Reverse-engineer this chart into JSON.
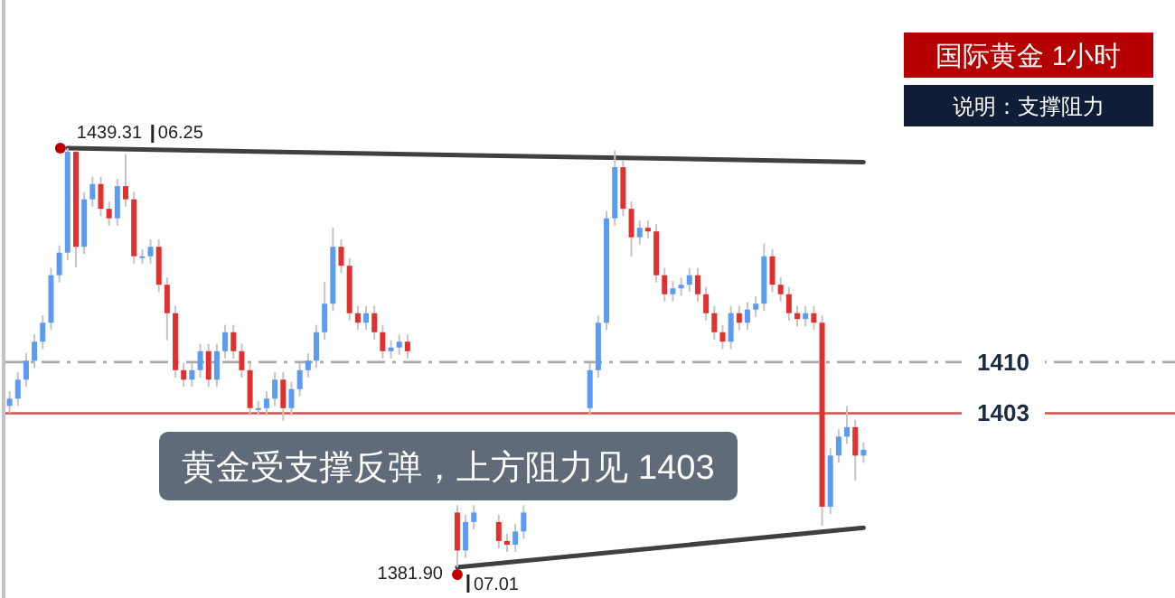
{
  "chart_data": {
    "type": "candlestick",
    "title": "国际黄金 1小时",
    "subtitle": "说明：支撑阻力",
    "categories": [
      null,
      null,
      null,
      null,
      null,
      null,
      null,
      null,
      null,
      null,
      null,
      null,
      null,
      null,
      null,
      null,
      null,
      null,
      null,
      null,
      null,
      null,
      null,
      null,
      null,
      null,
      null,
      null,
      null,
      null,
      null,
      null,
      null,
      null,
      null,
      null,
      null,
      null,
      null,
      null,
      null,
      null,
      null,
      null,
      null,
      null,
      null,
      null,
      null,
      null,
      null,
      null,
      null,
      null,
      null,
      null,
      null,
      null,
      null,
      null,
      null,
      null,
      null,
      null,
      null,
      null,
      null,
      null,
      null,
      null,
      null,
      null,
      null,
      null,
      null,
      null,
      null,
      null,
      null,
      null,
      null,
      null,
      null,
      null,
      null,
      null,
      null,
      null,
      null,
      null,
      null,
      null,
      null,
      null,
      null,
      null,
      null,
      null,
      null,
      null,
      null,
      null,
      null,
      null
    ],
    "ohlc": [
      [
        1404.0,
        1406.0,
        1403.0,
        1405.0
      ],
      [
        1405.0,
        1408.6,
        1404.0,
        1407.6
      ],
      [
        1407.6,
        1411.2,
        1406.6,
        1410.2
      ],
      [
        1410.2,
        1413.8,
        1409.2,
        1412.8
      ],
      [
        1412.8,
        1416.4,
        1411.8,
        1415.4
      ],
      [
        1415.4,
        1422.9,
        1414.4,
        1421.9
      ],
      [
        1421.9,
        1426.0,
        1420.9,
        1425.0
      ],
      [
        1425.0,
        1439.31,
        1424.0,
        1438.8
      ],
      [
        1438.8,
        1439.0,
        1423.0,
        1425.8
      ],
      [
        1425.8,
        1433.3,
        1424.8,
        1432.3
      ],
      [
        1432.3,
        1435.4,
        1431.3,
        1434.4
      ],
      [
        1434.4,
        1435.4,
        1430.0,
        1431.0
      ],
      [
        1431.0,
        1432.0,
        1428.7,
        1429.7
      ],
      [
        1429.7,
        1435.1,
        1428.7,
        1434.1
      ],
      [
        1434.1,
        1438.5,
        1431.3,
        1432.3
      ],
      [
        1432.3,
        1433.3,
        1423.5,
        1424.5
      ],
      [
        1424.5,
        1425.5,
        1423.5,
        1424.5
      ],
      [
        1424.5,
        1426.8,
        1423.5,
        1425.8
      ],
      [
        1425.8,
        1426.8,
        1419.6,
        1420.6
      ],
      [
        1420.6,
        1421.6,
        1413.0,
        1416.7
      ],
      [
        1416.7,
        1417.7,
        1407.9,
        1408.9
      ],
      [
        1408.9,
        1409.9,
        1406.6,
        1407.6
      ],
      [
        1407.6,
        1409.9,
        1406.6,
        1408.9
      ],
      [
        1408.9,
        1412.5,
        1407.9,
        1411.5
      ],
      [
        1411.5,
        1412.5,
        1406.6,
        1407.6
      ],
      [
        1407.6,
        1412.5,
        1406.6,
        1411.5
      ],
      [
        1411.5,
        1415.1,
        1410.5,
        1414.1
      ],
      [
        1414.1,
        1415.1,
        1410.5,
        1411.5
      ],
      [
        1411.5,
        1412.5,
        1407.9,
        1408.9
      ],
      [
        1408.9,
        1409.9,
        1402.7,
        1403.7
      ],
      [
        1403.7,
        1404.7,
        1402.7,
        1403.7
      ],
      [
        1403.7,
        1406.0,
        1402.7,
        1405.0
      ],
      [
        1405.0,
        1408.6,
        1404.0,
        1407.6
      ],
      [
        1407.6,
        1408.6,
        1402.0,
        1403.7
      ],
      [
        1403.7,
        1407.3,
        1402.7,
        1406.3
      ],
      [
        1406.3,
        1409.9,
        1405.3,
        1408.9
      ],
      [
        1408.9,
        1411.2,
        1407.9,
        1410.2
      ],
      [
        1410.2,
        1415.1,
        1409.2,
        1414.1
      ],
      [
        1414.1,
        1421.0,
        1413.1,
        1418.0
      ],
      [
        1418.0,
        1428.4,
        1417.0,
        1425.8
      ],
      [
        1425.8,
        1426.8,
        1422.2,
        1423.2
      ],
      [
        1423.2,
        1424.2,
        1415.7,
        1416.7
      ],
      [
        1416.7,
        1417.7,
        1414.4,
        1415.4
      ],
      [
        1415.4,
        1417.7,
        1414.4,
        1416.7
      ],
      [
        1416.7,
        1417.7,
        1413.1,
        1414.1
      ],
      [
        1414.1,
        1415.1,
        1410.5,
        1411.5
      ],
      [
        1411.5,
        1413.0,
        1410.5,
        1412.0
      ],
      [
        1412.0,
        1413.8,
        1411.0,
        1412.8
      ],
      [
        1412.8,
        1413.8,
        1410.5,
        1411.5
      ],
      null,
      null,
      null,
      null,
      null,
      [
        1389.4,
        1390.4,
        1381.9,
        1384.2
      ],
      [
        1384.2,
        1389.1,
        1383.2,
        1388.1
      ],
      [
        1388.1,
        1390.4,
        1387.1,
        1389.4
      ],
      null,
      null,
      [
        1388.1,
        1389.1,
        1384.5,
        1385.5
      ],
      [
        1385.5,
        1386.5,
        1384.0,
        1385.0
      ],
      [
        1385.0,
        1387.8,
        1384.0,
        1386.8
      ],
      [
        1386.8,
        1390.4,
        1385.8,
        1389.4
      ],
      null,
      null,
      null,
      null,
      null,
      null,
      null,
      [
        1403.7,
        1409.9,
        1402.7,
        1408.9
      ],
      [
        1408.9,
        1416.4,
        1407.9,
        1415.4
      ],
      [
        1415.4,
        1430.7,
        1414.4,
        1429.7
      ],
      [
        1429.7,
        1439.0,
        1428.7,
        1436.7
      ],
      [
        1436.7,
        1437.7,
        1430.0,
        1431.0
      ],
      [
        1431.0,
        1432.0,
        1424.5,
        1427.1
      ],
      [
        1427.1,
        1429.4,
        1426.1,
        1428.4
      ],
      [
        1428.4,
        1429.4,
        1426.9,
        1427.9
      ],
      [
        1427.9,
        1428.9,
        1420.9,
        1421.9
      ],
      [
        1421.9,
        1422.9,
        1418.3,
        1419.3
      ],
      [
        1419.3,
        1421.1,
        1418.3,
        1420.1
      ],
      [
        1420.1,
        1421.6,
        1419.1,
        1420.6
      ],
      [
        1420.6,
        1422.9,
        1419.6,
        1421.9
      ],
      [
        1421.9,
        1422.9,
        1418.3,
        1419.3
      ],
      [
        1419.3,
        1420.3,
        1415.7,
        1416.7
      ],
      [
        1416.7,
        1417.7,
        1413.1,
        1414.1
      ],
      [
        1414.1,
        1415.1,
        1411.8,
        1412.8
      ],
      [
        1412.8,
        1417.7,
        1411.8,
        1416.7
      ],
      [
        1416.7,
        1417.7,
        1414.4,
        1415.4
      ],
      [
        1415.4,
        1418.2,
        1414.4,
        1417.2
      ],
      [
        1417.2,
        1419.0,
        1416.2,
        1418.0
      ],
      [
        1418.0,
        1426.3,
        1417.0,
        1424.5
      ],
      [
        1424.5,
        1425.5,
        1419.6,
        1420.6
      ],
      [
        1420.6,
        1421.6,
        1418.3,
        1419.3
      ],
      [
        1419.3,
        1420.3,
        1415.7,
        1416.7
      ],
      [
        1416.7,
        1417.7,
        1414.9,
        1415.9
      ],
      [
        1415.9,
        1417.7,
        1414.9,
        1416.7
      ],
      [
        1416.7,
        1417.7,
        1414.4,
        1415.4
      ],
      [
        1415.4,
        1416.4,
        1387.6,
        1390.2
      ],
      [
        1390.2,
        1398.2,
        1389.2,
        1397.2
      ],
      [
        1397.2,
        1400.8,
        1396.2,
        1399.8
      ],
      [
        1399.8,
        1404.0,
        1398.8,
        1401.1
      ],
      [
        1401.1,
        1402.1,
        1393.8,
        1397.2
      ],
      [
        1397.2,
        1399.0,
        1396.2,
        1398.0
      ]
    ],
    "series": [
      {
        "type": "line",
        "color": "#404040",
        "values": [
          null,
          null,
          null,
          null,
          null,
          null,
          null,
          1439.3,
          null,
          null,
          null,
          null,
          null,
          null,
          null,
          null,
          null,
          null,
          null,
          null,
          null,
          null,
          null,
          null,
          null,
          null,
          null,
          null,
          null,
          null,
          null,
          null,
          null,
          null,
          null,
          null,
          null,
          null,
          null,
          null,
          null,
          null,
          null,
          null,
          null,
          null,
          null,
          null,
          null,
          null,
          null,
          null,
          null,
          null,
          null,
          null,
          null,
          null,
          null,
          null,
          null,
          null,
          null,
          null,
          null,
          null,
          null,
          null,
          null,
          null,
          null,
          null,
          null,
          null,
          null,
          null,
          null,
          null,
          null,
          null,
          null,
          null,
          null,
          null,
          null,
          null,
          null,
          null,
          null,
          null,
          null,
          null,
          null,
          null,
          null,
          null,
          null,
          null,
          null,
          null,
          null,
          null,
          null,
          1437.4
        ]
      },
      {
        "type": "line",
        "color": "#404040",
        "values": [
          null,
          null,
          null,
          null,
          null,
          null,
          null,
          null,
          null,
          null,
          null,
          null,
          null,
          null,
          null,
          null,
          null,
          null,
          null,
          null,
          null,
          null,
          null,
          null,
          null,
          null,
          null,
          null,
          null,
          null,
          null,
          null,
          null,
          null,
          null,
          null,
          null,
          null,
          null,
          null,
          null,
          null,
          null,
          null,
          null,
          null,
          null,
          null,
          null,
          null,
          null,
          null,
          null,
          null,
          1381.9,
          null,
          null,
          null,
          null,
          null,
          null,
          null,
          null,
          null,
          null,
          null,
          null,
          null,
          null,
          null,
          null,
          null,
          null,
          null,
          null,
          null,
          null,
          null,
          null,
          null,
          null,
          null,
          null,
          null,
          null,
          null,
          null,
          null,
          null,
          null,
          null,
          null,
          null,
          null,
          null,
          null,
          null,
          null,
          null,
          null,
          null,
          null,
          null,
          1387.3
        ]
      }
    ],
    "ref_lines": [
      {
        "axis": "y",
        "value": 1410,
        "label": "1410",
        "color": "#9a9a9a",
        "line_style": "dashdot"
      },
      {
        "axis": "y",
        "value": 1403,
        "label": "1403",
        "color": "#d03030",
        "line_style": "solid"
      }
    ],
    "annotations": [
      "1439.31",
      "06.25",
      "1381.90",
      "07.01",
      "黄金受支撑反弹，上方阻力见 1403"
    ]
  }
}
